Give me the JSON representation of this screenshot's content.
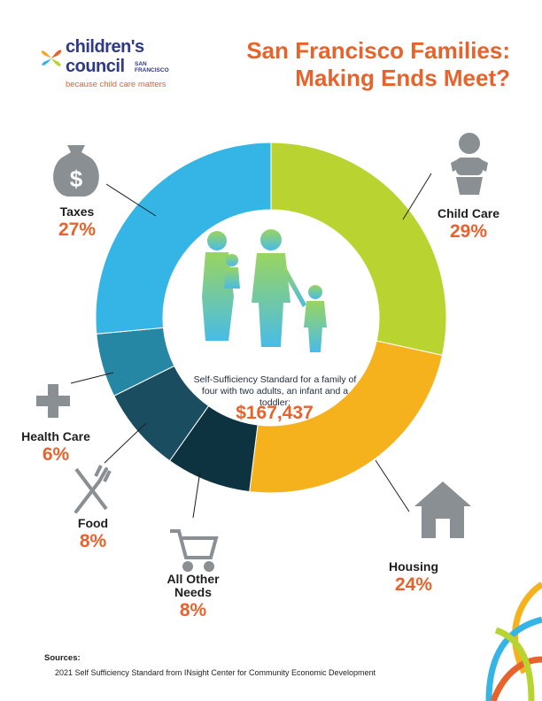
{
  "logo": {
    "word1": "children's",
    "word2": "council",
    "small": "SAN FRANCISCO",
    "tagline": "because child care matters"
  },
  "title": {
    "line1": "San Francisco Families:",
    "line2": "Making Ends Meet?"
  },
  "center": {
    "text": "Self-Sufficiency Standard for a family of four with two adults, an infant and a toddler:",
    "total": "$167,437"
  },
  "chart_data": {
    "type": "pie",
    "style": "donut",
    "categories": [
      "Child Care",
      "Housing",
      "All Other Needs",
      "Food",
      "Health Care",
      "Taxes"
    ],
    "values": [
      29,
      24,
      8,
      8,
      6,
      27
    ],
    "labels": [
      "29%",
      "24%",
      "8%",
      "8%",
      "6%",
      "27%"
    ],
    "colors": [
      "#b9d431",
      "#f5b21c",
      "#0d3340",
      "#1a4d5f",
      "#2587a3",
      "#35b5e5"
    ],
    "icons": [
      "baby-icon",
      "house-icon",
      "shopping-cart-icon",
      "fork-knife-icon",
      "medical-cross-icon",
      "money-bag-icon"
    ],
    "total": "$167,437"
  },
  "sources": {
    "heading": "Sources:",
    "text": "2021 Self Sufficiency Standard from INsight Center for Community Economic Development"
  }
}
